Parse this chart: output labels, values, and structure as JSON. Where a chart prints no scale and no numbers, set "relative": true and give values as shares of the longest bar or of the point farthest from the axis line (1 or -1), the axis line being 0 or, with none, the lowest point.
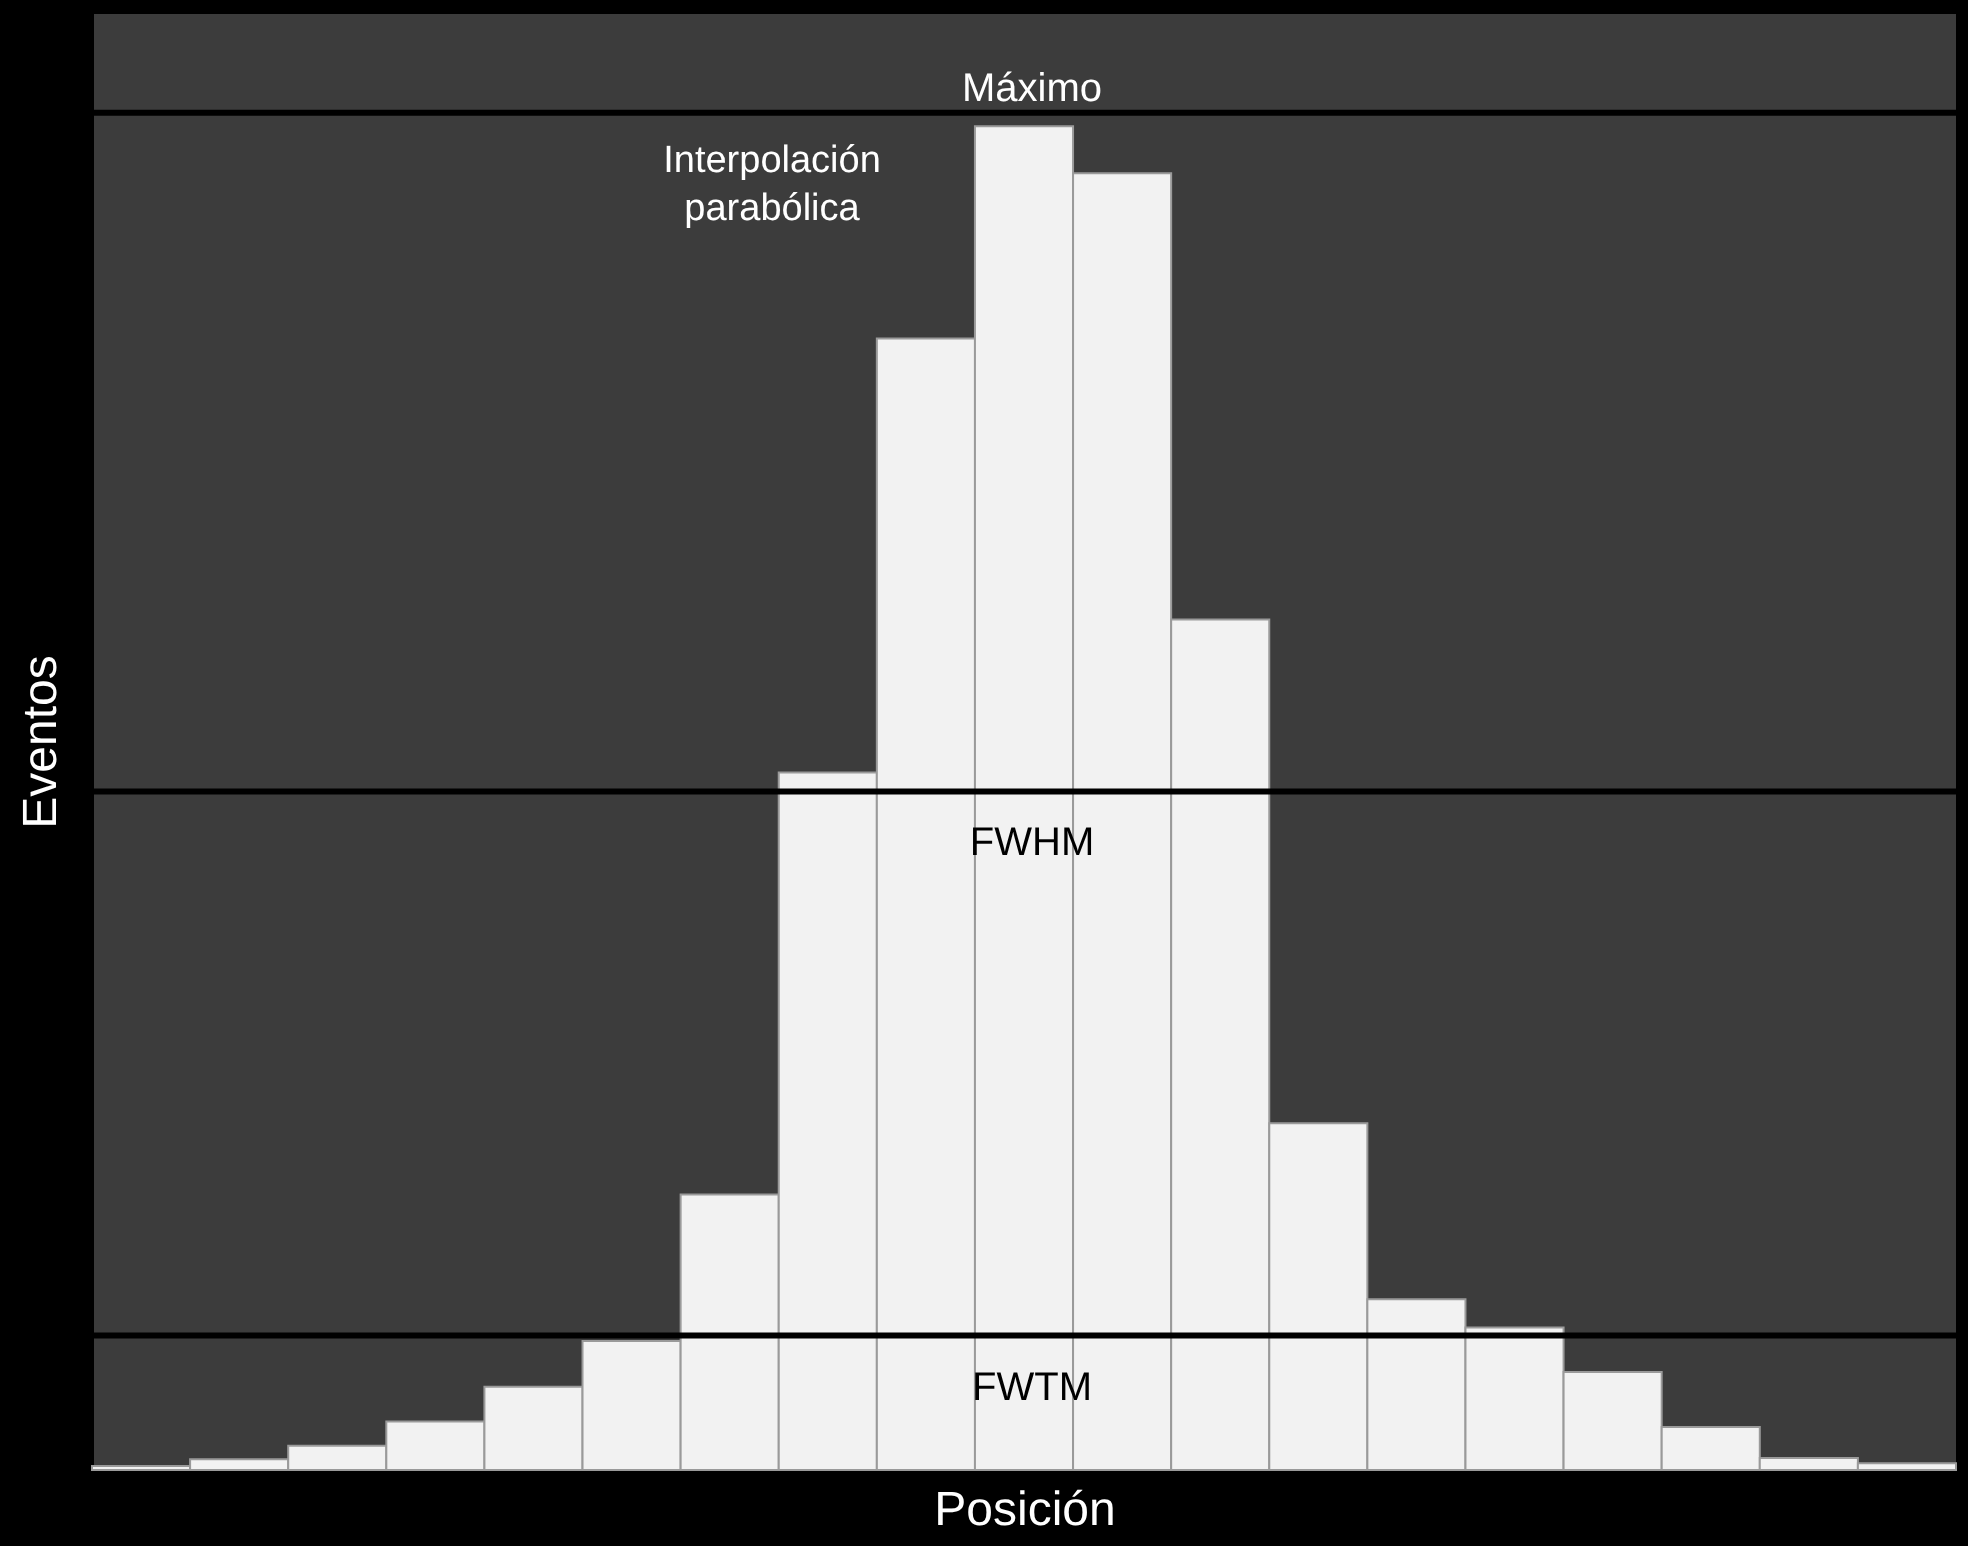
{
  "chart_data": {
    "type": "bar",
    "relative": true,
    "xlabel": "Posición",
    "ylabel": "Eventos",
    "categories": [
      null,
      null,
      null,
      null,
      null,
      null,
      null,
      null,
      null,
      null,
      null,
      null,
      null,
      null,
      null,
      null,
      null,
      null,
      null
    ],
    "values": [
      0.003,
      0.008,
      0.018,
      0.036,
      0.062,
      0.096,
      0.205,
      0.519,
      0.842,
      1,
      0.965,
      0.633,
      0.258,
      0.127,
      0.106,
      0.073,
      0.032,
      0.009,
      0.005
    ],
    "color": "#f2f2f2",
    "ref_lines": [
      {
        "axis": "y",
        "value": 1.01,
        "label": "Máximo",
        "color": "#000000"
      },
      {
        "axis": "y",
        "value": 0.505,
        "label": "FWHM",
        "color": "#000000"
      },
      {
        "axis": "y",
        "value": 0.1,
        "label": "FWTM",
        "color": "#000000"
      }
    ],
    "annotations": [
      "Interpolación parabólica"
    ],
    "tick_labels": false,
    "grid": false
  }
}
